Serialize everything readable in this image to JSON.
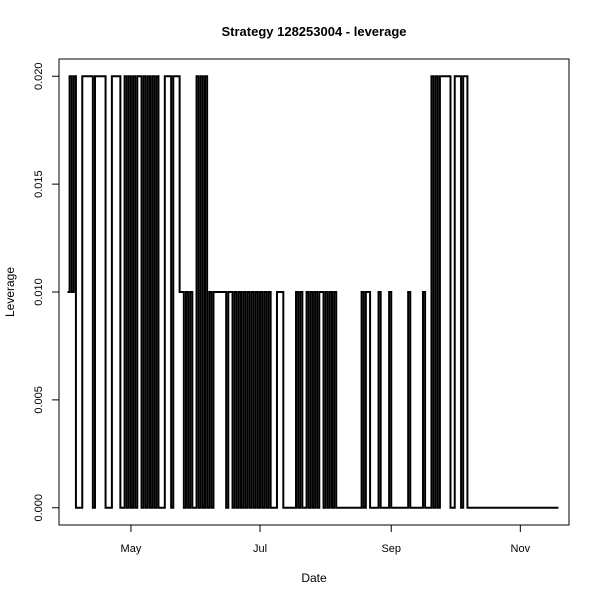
{
  "chart_data": {
    "type": "line",
    "title": "Strategy 128253004 - leverage",
    "xlabel": "Date",
    "ylabel": "Leverage",
    "x_type": "date",
    "xlim": [
      "2013-03-28",
      "2013-11-24"
    ],
    "ylim": [
      -0.0008,
      0.0208
    ],
    "x_ticks": [
      {
        "date": "2013-05-01",
        "label": "May"
      },
      {
        "date": "2013-07-01",
        "label": "Jul"
      },
      {
        "date": "2013-09-01",
        "label": "Sep"
      },
      {
        "date": "2013-11-01",
        "label": "Nov"
      }
    ],
    "y_ticks": [
      {
        "value": 0.0,
        "label": "0.000"
      },
      {
        "value": 0.005,
        "label": "0.005"
      },
      {
        "value": 0.01,
        "label": "0.010"
      },
      {
        "value": 0.015,
        "label": "0.015"
      },
      {
        "value": 0.02,
        "label": "0.020"
      }
    ],
    "grid": false,
    "line_color": "#000000",
    "series": [
      {
        "step": true,
        "points": [
          [
            "2013-04-01",
            0.01
          ],
          [
            "2013-04-02",
            0.02
          ],
          [
            "2013-04-03",
            0.01
          ],
          [
            "2013-04-04",
            0.02
          ],
          [
            "2013-04-05",
            0.0
          ],
          [
            "2013-04-08",
            0.02
          ],
          [
            "2013-04-13",
            0.0
          ],
          [
            "2013-04-14",
            0.02
          ],
          [
            "2013-04-19",
            0.0
          ],
          [
            "2013-04-22",
            0.02
          ],
          [
            "2013-04-26",
            0.0
          ],
          [
            "2013-04-28",
            0.02
          ],
          [
            "2013-04-29",
            0.0
          ],
          [
            "2013-04-30",
            0.02
          ],
          [
            "2013-05-01",
            0.0
          ],
          [
            "2013-05-02",
            0.02
          ],
          [
            "2013-05-03",
            0.0
          ],
          [
            "2013-05-04",
            0.02
          ],
          [
            "2013-05-06",
            0.0
          ],
          [
            "2013-05-07",
            0.02
          ],
          [
            "2013-05-08",
            0.0
          ],
          [
            "2013-05-09",
            0.02
          ],
          [
            "2013-05-10",
            0.0
          ],
          [
            "2013-05-11",
            0.02
          ],
          [
            "2013-05-12",
            0.0
          ],
          [
            "2013-05-13",
            0.02
          ],
          [
            "2013-05-14",
            0.0
          ],
          [
            "2013-05-17",
            0.02
          ],
          [
            "2013-05-20",
            0.0
          ],
          [
            "2013-05-21",
            0.02
          ],
          [
            "2013-05-24",
            0.01
          ],
          [
            "2013-05-26",
            0.0
          ],
          [
            "2013-05-27",
            0.01
          ],
          [
            "2013-05-28",
            0.0
          ],
          [
            "2013-05-29",
            0.01
          ],
          [
            "2013-05-30",
            0.0
          ],
          [
            "2013-06-01",
            0.02
          ],
          [
            "2013-06-02",
            0.0
          ],
          [
            "2013-06-03",
            0.02
          ],
          [
            "2013-06-04",
            0.0
          ],
          [
            "2013-06-05",
            0.02
          ],
          [
            "2013-06-06",
            0.0
          ],
          [
            "2013-06-07",
            0.01
          ],
          [
            "2013-06-08",
            0.0
          ],
          [
            "2013-06-09",
            0.01
          ],
          [
            "2013-06-15",
            0.0
          ],
          [
            "2013-06-16",
            0.01
          ],
          [
            "2013-06-18",
            0.0
          ],
          [
            "2013-06-19",
            0.01
          ],
          [
            "2013-06-20",
            0.0
          ],
          [
            "2013-06-21",
            0.01
          ],
          [
            "2013-06-22",
            0.0
          ],
          [
            "2013-06-23",
            0.01
          ],
          [
            "2013-06-24",
            0.0
          ],
          [
            "2013-06-25",
            0.01
          ],
          [
            "2013-06-26",
            0.0
          ],
          [
            "2013-06-27",
            0.01
          ],
          [
            "2013-06-28",
            0.0
          ],
          [
            "2013-06-29",
            0.01
          ],
          [
            "2013-06-30",
            0.0
          ],
          [
            "2013-07-01",
            0.01
          ],
          [
            "2013-07-02",
            0.0
          ],
          [
            "2013-07-03",
            0.01
          ],
          [
            "2013-07-04",
            0.0
          ],
          [
            "2013-07-05",
            0.01
          ],
          [
            "2013-07-06",
            0.0
          ],
          [
            "2013-07-09",
            0.01
          ],
          [
            "2013-07-12",
            0.0
          ],
          [
            "2013-07-18",
            0.01
          ],
          [
            "2013-07-19",
            0.0
          ],
          [
            "2013-07-20",
            0.01
          ],
          [
            "2013-07-21",
            0.0
          ],
          [
            "2013-07-23",
            0.01
          ],
          [
            "2013-07-24",
            0.0
          ],
          [
            "2013-07-25",
            0.01
          ],
          [
            "2013-07-26",
            0.0
          ],
          [
            "2013-07-27",
            0.01
          ],
          [
            "2013-07-28",
            0.0
          ],
          [
            "2013-07-29",
            0.01
          ],
          [
            "2013-07-31",
            0.0
          ],
          [
            "2013-08-01",
            0.01
          ],
          [
            "2013-08-02",
            0.0
          ],
          [
            "2013-08-03",
            0.01
          ],
          [
            "2013-08-04",
            0.0
          ],
          [
            "2013-08-05",
            0.01
          ],
          [
            "2013-08-06",
            0.0
          ],
          [
            "2013-08-18",
            0.01
          ],
          [
            "2013-08-19",
            0.0
          ],
          [
            "2013-08-20",
            0.01
          ],
          [
            "2013-08-22",
            0.0
          ],
          [
            "2013-08-26",
            0.01
          ],
          [
            "2013-08-27",
            0.0
          ],
          [
            "2013-08-31",
            0.01
          ],
          [
            "2013-09-01",
            0.0
          ],
          [
            "2013-09-09",
            0.01
          ],
          [
            "2013-09-10",
            0.0
          ],
          [
            "2013-09-16",
            0.01
          ],
          [
            "2013-09-17",
            0.0
          ],
          [
            "2013-09-20",
            0.02
          ],
          [
            "2013-09-21",
            0.0
          ],
          [
            "2013-09-22",
            0.02
          ],
          [
            "2013-09-23",
            0.0
          ],
          [
            "2013-09-24",
            0.02
          ],
          [
            "2013-09-29",
            0.0
          ],
          [
            "2013-10-01",
            0.02
          ],
          [
            "2013-10-04",
            0.0
          ],
          [
            "2013-10-05",
            0.02
          ],
          [
            "2013-10-07",
            0.0
          ],
          [
            "2013-11-19",
            0.0
          ]
        ]
      }
    ]
  }
}
